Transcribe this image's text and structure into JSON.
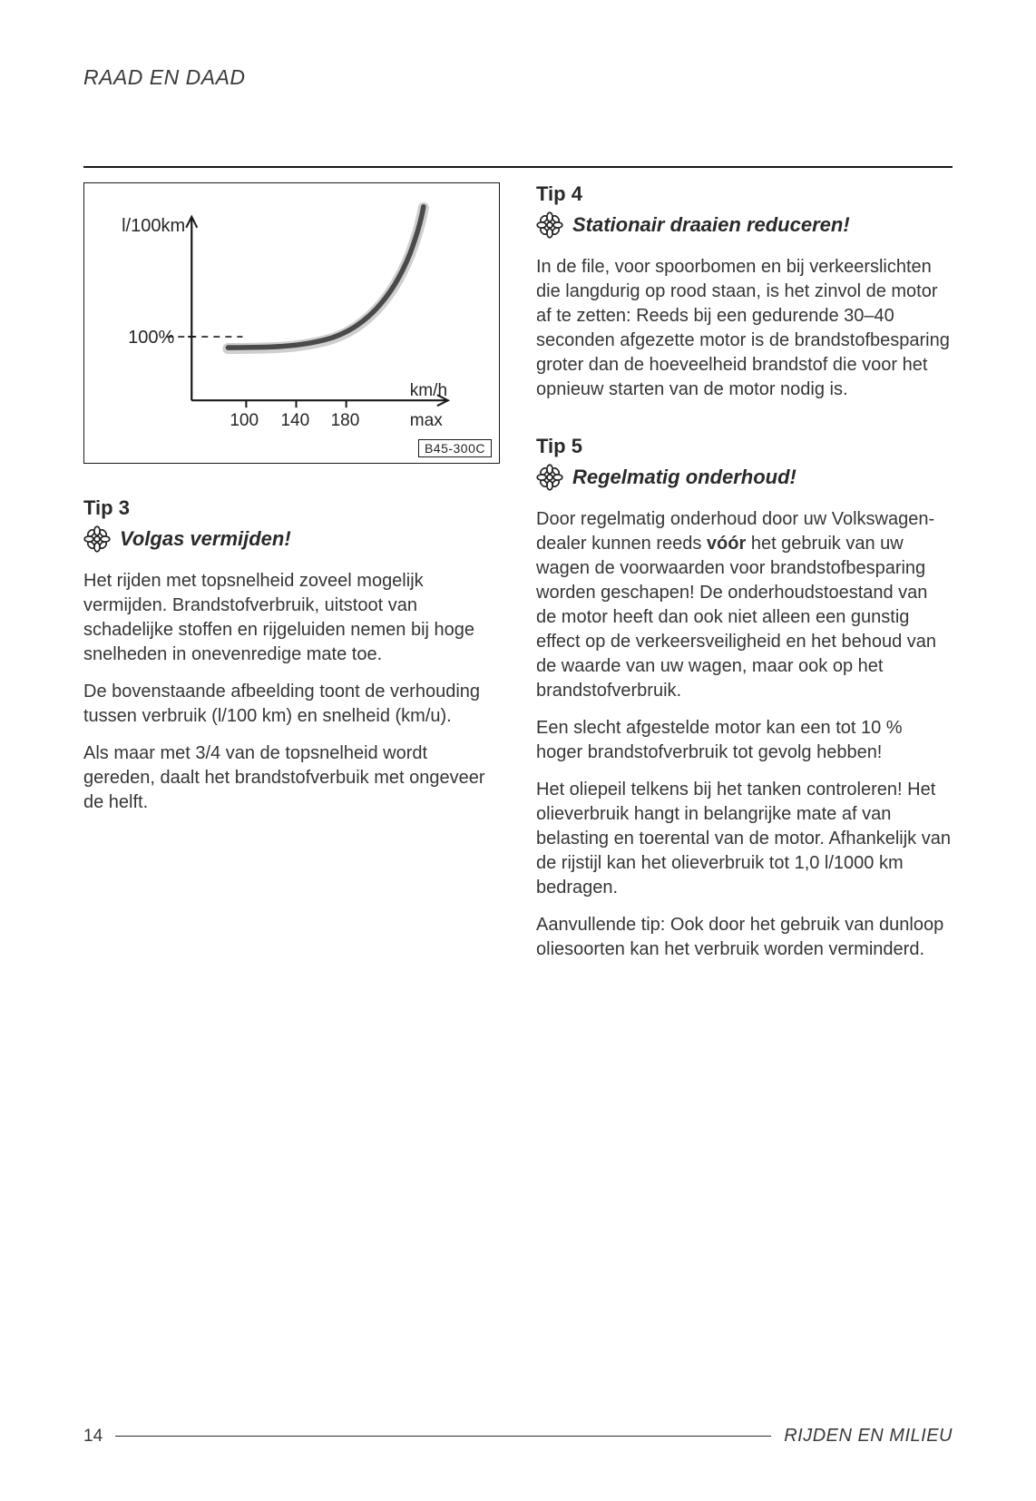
{
  "header": {
    "title": "RAAD EN DAAD"
  },
  "chart": {
    "type": "line",
    "y_label": "l/100km",
    "y_ref_label": "100%",
    "x_label_right": "km/h",
    "x_max_label": "max",
    "x_ticks": [
      "100",
      "140",
      "180"
    ],
    "ref_code": "B45-300C",
    "axis_color": "#1a1a1a",
    "curve_color": "#555555",
    "curve_highlight": "#d0d0d0",
    "dashed_color": "#1a1a1a",
    "box_border_color": "#1a1a1a",
    "background_color": "#ffffff",
    "tick_fontsize": 19,
    "label_fontsize": 20,
    "xlim": [
      60,
      240
    ],
    "ylim": [
      80,
      260
    ],
    "curve_points": [
      [
        88,
        110
      ],
      [
        100,
        108
      ],
      [
        120,
        108
      ],
      [
        140,
        110
      ],
      [
        160,
        117
      ],
      [
        180,
        132
      ],
      [
        200,
        160
      ],
      [
        215,
        200
      ],
      [
        225,
        250
      ]
    ],
    "curve_width": 6,
    "dash_width": 1.6
  },
  "tips": {
    "tip3": {
      "number": "Tip 3",
      "heading": "Volgas vermijden!",
      "paragraphs": [
        "Het rijden met topsnelheid zoveel mogelijk vermijden. Brandstofverbruik, uitstoot van schadelijke stoffen en rijgeluiden nemen bij hoge snelheden in onevenredige mate toe.",
        "De bovenstaande afbeelding toont de verhouding tussen verbruik (l/100 km) en snelheid (km/u).",
        "Als maar met 3/4 van de topsnelheid wordt gereden, daalt het brandstofverbuik met ongeveer de helft."
      ]
    },
    "tip4": {
      "number": "Tip 4",
      "heading": "Stationair draaien reduceren!",
      "paragraphs": [
        "In de file, voor spoorbomen en bij verkeerslichten die langdurig op rood staan, is het zinvol de motor af te zetten: Reeds bij een gedurende 30–40 seconden afgezette motor is de brandstofbesparing groter dan de hoeveelheid brandstof die voor het opnieuw starten van de motor nodig is."
      ]
    },
    "tip5": {
      "number": "Tip 5",
      "heading": "Regelmatig onderhoud!",
      "paragraphs_html": [
        "Door regelmatig onderhoud door uw Volkswagen-dealer kunnen reeds <strong>vóór</strong> het gebruik van uw wagen de voorwaarden voor brandstofbesparing worden geschapen! De onderhoudstoestand van de motor heeft dan ook niet alleen een gunstig effect op de verkeersveiligheid en het behoud van de waarde van uw wagen, maar ook op het brandstofverbruik.",
        "Een slecht afgestelde motor kan een tot 10 % hoger brandstofverbruik tot gevolg hebben!",
        "Het oliepeil telkens bij het tanken controleren! Het olieverbruik hangt in belangrijke mate af van belasting en toerental van de motor. Afhankelijk van de rijstijl kan het olieverbruik tot 1,0 l/1000 km bedragen.",
        "Aanvullende tip: Ook door het gebruik van dunloop oliesoorten kan het verbruik worden verminderd."
      ]
    }
  },
  "footer": {
    "page": "14",
    "section": "RIJDEN EN MILIEU"
  },
  "colors": {
    "text": "#262626",
    "heading": "#2a2a2a",
    "rule": "#1a1a1a",
    "bg": "#ffffff"
  }
}
